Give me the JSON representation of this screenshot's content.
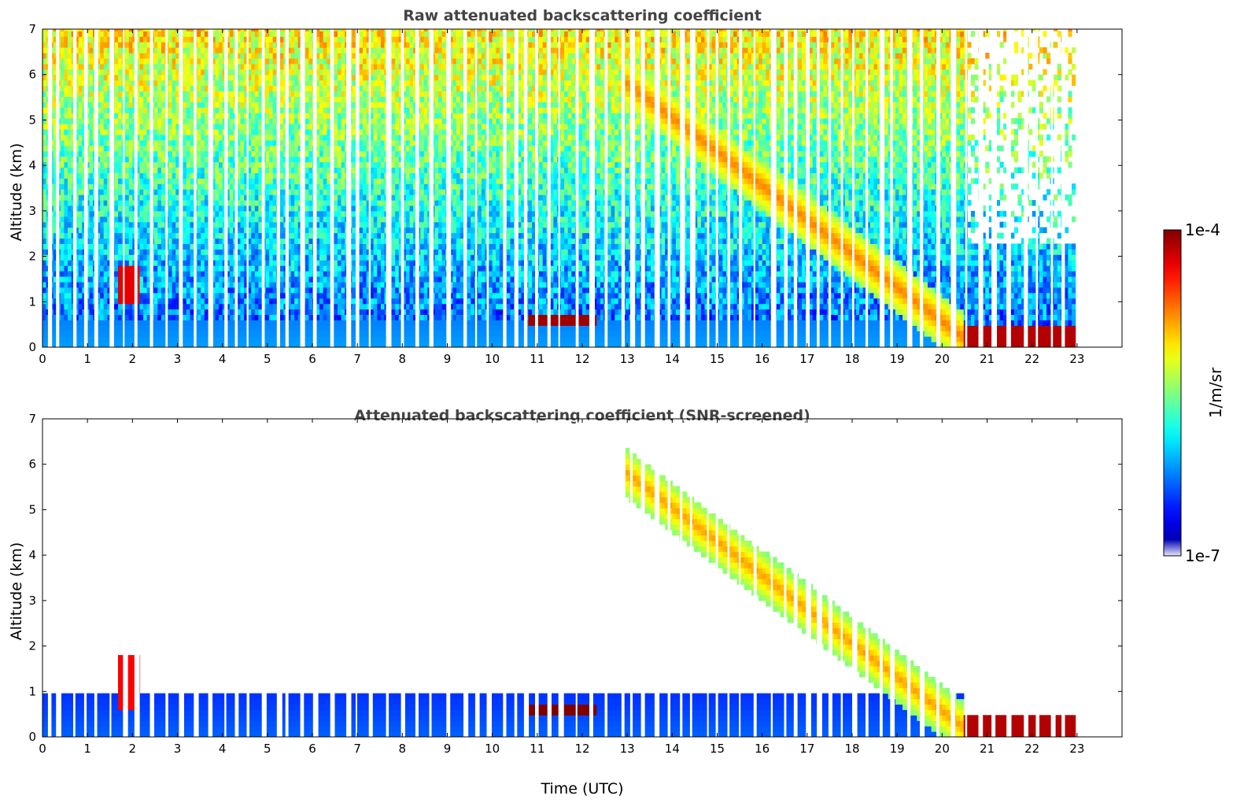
{
  "chart_data": [
    {
      "type": "heatmap",
      "title": "Raw attenuated backscattering coefficient",
      "xlabel": "",
      "ylabel": "Altitude (km)",
      "xlim": [
        0,
        24
      ],
      "ylim": [
        0,
        7
      ],
      "x_ticks": [
        "0",
        "1",
        "2",
        "3",
        "4",
        "5",
        "6",
        "7",
        "8",
        "9",
        "10",
        "11",
        "12",
        "13",
        "14",
        "15",
        "16",
        "17",
        "18",
        "19",
        "20",
        "21",
        "22",
        "23"
      ],
      "y_ticks": [
        "0",
        "1",
        "2",
        "3",
        "4",
        "5",
        "6",
        "7"
      ],
      "data_end_time": 22.95,
      "grid": false,
      "features": [
        {
          "name": "boundary_layer",
          "t_start": 0,
          "t_end": 20.5,
          "top_km": 0.6,
          "level": 0.28
        },
        {
          "name": "cloud_layer",
          "t_start": 10.8,
          "t_end": 12.3,
          "base_km": 0.5,
          "top_km": 0.75,
          "level": 0.97
        },
        {
          "name": "aerosol_plume",
          "t_start": 1.7,
          "t_end": 2.2,
          "base_km": 1.0,
          "top_km": 1.8,
          "level": 0.9
        },
        {
          "name": "descending_layer",
          "t_start": 13.0,
          "t_end": 20.5,
          "alt_start_km": 5.8,
          "alt_end_km": 0.2,
          "level": 0.75
        },
        {
          "name": "low_cloud",
          "t_start": 20.5,
          "t_end": 22.95,
          "base_km": 0.0,
          "top_km": 0.5,
          "level": 0.95
        }
      ]
    },
    {
      "type": "heatmap",
      "title": "Attenuated backscattering coefficient (SNR-screened)",
      "xlabel": "Time (UTC)",
      "ylabel": "Altitude (km)",
      "xlim": [
        0,
        24
      ],
      "ylim": [
        0,
        7
      ],
      "x_ticks": [
        "0",
        "1",
        "2",
        "3",
        "4",
        "5",
        "6",
        "7",
        "8",
        "9",
        "10",
        "11",
        "12",
        "13",
        "14",
        "15",
        "16",
        "17",
        "18",
        "19",
        "20",
        "21",
        "22",
        "23"
      ],
      "y_ticks": [
        "0",
        "1",
        "2",
        "3",
        "4",
        "5",
        "6",
        "7"
      ],
      "data_end_time": 22.95,
      "grid": false,
      "features": [
        {
          "name": "boundary_layer",
          "t_start": 0,
          "t_end": 20.5,
          "top_km": 1.0,
          "level": 0.22
        },
        {
          "name": "cloud_layer",
          "t_start": 10.8,
          "t_end": 12.3,
          "base_km": 0.5,
          "top_km": 0.75,
          "level": 1.0
        },
        {
          "name": "aerosol_plume",
          "t_start": 1.7,
          "t_end": 2.2,
          "base_km": 0.6,
          "top_km": 1.8,
          "level": 0.88
        },
        {
          "name": "descending_layer",
          "t_start": 13.0,
          "t_end": 20.5,
          "alt_start_km": 5.8,
          "alt_end_km": 0.2,
          "level": 0.72
        },
        {
          "name": "low_cloud",
          "t_start": 20.5,
          "t_end": 22.95,
          "base_km": 0.0,
          "top_km": 0.5,
          "level": 0.95
        }
      ]
    }
  ],
  "colorbar": {
    "label": "1/m/sr",
    "max_label": "1e-4",
    "min_label": "1e-7",
    "colormap": "jet",
    "scale": "log"
  },
  "colors": {
    "title_text": "#444444",
    "axis": "#000000",
    "background": "#ffffff"
  }
}
